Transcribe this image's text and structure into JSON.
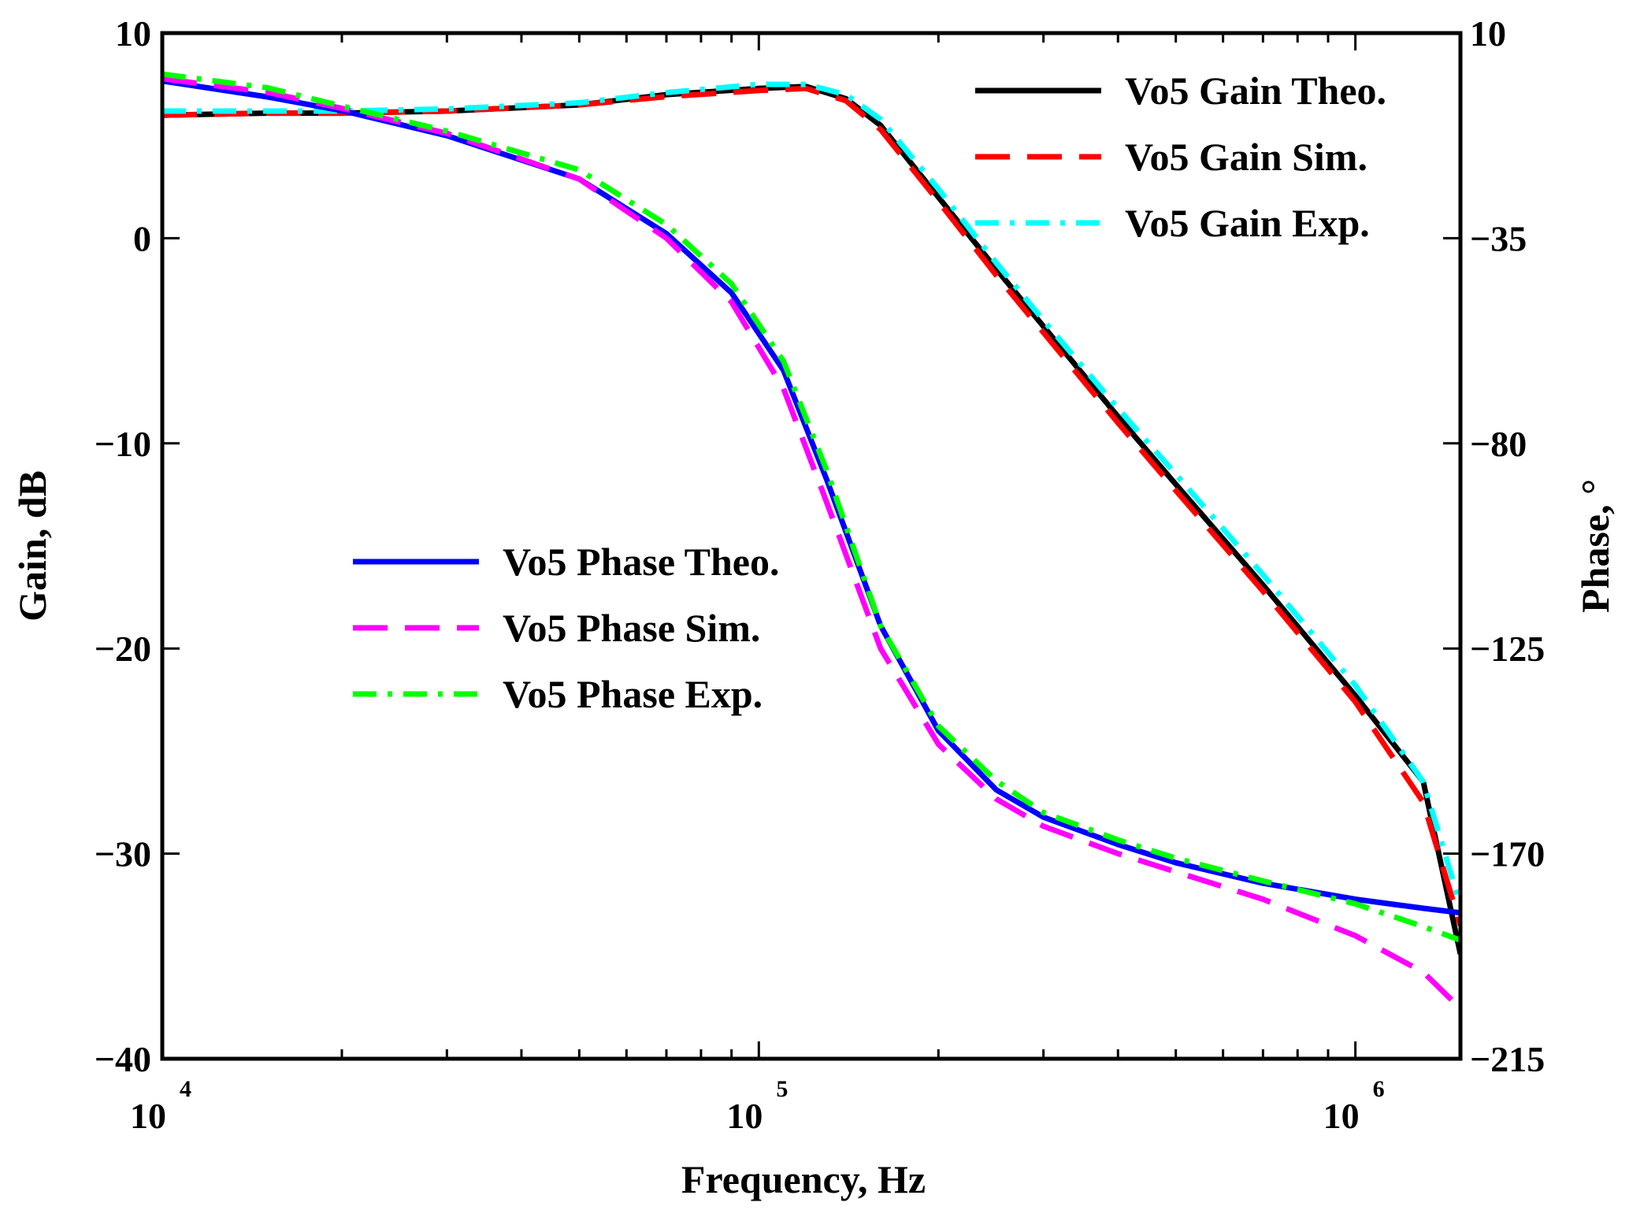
{
  "chart_data": {
    "type": "line",
    "title": "",
    "xlabel": "Frequency, Hz",
    "ylabel_left": "Gain, dB",
    "ylabel_right": "Phase, °",
    "xscale": "log",
    "xlim": [
      10000,
      1500000
    ],
    "ylim_left": [
      -40,
      10
    ],
    "ylim_right": [
      -215,
      10
    ],
    "grid": false,
    "x_ticks": [
      {
        "value": 10000,
        "base": "10",
        "exp": "4"
      },
      {
        "value": 100000,
        "base": "10",
        "exp": "5"
      },
      {
        "value": 1000000,
        "base": "10",
        "exp": "6"
      }
    ],
    "y_ticks_left": [
      {
        "value": 10,
        "label": "10"
      },
      {
        "value": 0,
        "label": "0"
      },
      {
        "value": -10,
        "label": "−10"
      },
      {
        "value": -20,
        "label": "−20"
      },
      {
        "value": -30,
        "label": "−30"
      },
      {
        "value": -40,
        "label": "−40"
      }
    ],
    "y_ticks_right": [
      {
        "value": 10,
        "label": "10"
      },
      {
        "value": -35,
        "label": "−35"
      },
      {
        "value": -80,
        "label": "−80"
      },
      {
        "value": -125,
        "label": "−125"
      },
      {
        "value": -170,
        "label": "−170"
      },
      {
        "value": -215,
        "label": "−215"
      }
    ],
    "legend_gain_position": "top-right",
    "legend_phase_position": "center-left",
    "series": [
      {
        "name": "Vo5 Gain Theo.",
        "axis": "left",
        "color": "#000000",
        "dash": "solid",
        "x": [
          10000,
          15000,
          20000,
          30000,
          50000,
          70000,
          100000,
          120000,
          140000,
          160000,
          200000,
          250000,
          300000,
          400000,
          500000,
          700000,
          1000000,
          1300000,
          1500000
        ],
        "y": [
          6.0,
          6.1,
          6.1,
          6.2,
          6.5,
          7.0,
          7.3,
          7.4,
          6.8,
          5.5,
          2.0,
          -1.5,
          -4.3,
          -8.7,
          -12.0,
          -16.9,
          -22.3,
          -26.5,
          -34.9
        ]
      },
      {
        "name": "Vo5 Gain Sim.",
        "axis": "left",
        "color": "#ff0000",
        "dash": "long-dash",
        "x": [
          10000,
          15000,
          20000,
          30000,
          50000,
          70000,
          100000,
          120000,
          140000,
          160000,
          200000,
          250000,
          300000,
          400000,
          500000,
          700000,
          1000000,
          1300000,
          1500000
        ],
        "y": [
          6.0,
          6.1,
          6.1,
          6.2,
          6.5,
          6.9,
          7.2,
          7.3,
          6.7,
          5.3,
          1.8,
          -1.8,
          -4.6,
          -9.0,
          -12.3,
          -17.2,
          -22.6,
          -27.5,
          -33.5
        ]
      },
      {
        "name": "Vo5 Gain Exp.",
        "axis": "left",
        "color": "#00ffff",
        "dash": "dash-dot",
        "x": [
          10000,
          15000,
          20000,
          30000,
          50000,
          70000,
          100000,
          120000,
          140000,
          160000,
          200000,
          250000,
          300000,
          400000,
          500000,
          700000,
          1000000,
          1300000,
          1500000
        ],
        "y": [
          6.2,
          6.2,
          6.2,
          6.3,
          6.6,
          7.1,
          7.5,
          7.5,
          7.0,
          5.8,
          2.4,
          -1.2,
          -4.0,
          -8.3,
          -11.5,
          -16.4,
          -21.8,
          -26.5,
          -32.5
        ]
      },
      {
        "name": "Vo5 Phase Theo.",
        "axis": "right",
        "color": "#0000ff",
        "dash": "solid",
        "x": [
          10000,
          15000,
          20000,
          30000,
          50000,
          70000,
          90000,
          110000,
          130000,
          160000,
          200000,
          250000,
          300000,
          400000,
          500000,
          700000,
          1000000,
          1300000,
          1500000
        ],
        "y": [
          -0.5,
          -4.0,
          -7.0,
          -12.5,
          -22.0,
          -34.0,
          -47.0,
          -64.0,
          -88.0,
          -120.0,
          -143.0,
          -156.0,
          -162.0,
          -168.0,
          -172.0,
          -176.5,
          -180.0,
          -182.0,
          -183.0
        ]
      },
      {
        "name": "Vo5 Phase Sim.",
        "axis": "right",
        "color": "#ff00ff",
        "dash": "long-dash",
        "x": [
          10000,
          15000,
          20000,
          30000,
          50000,
          70000,
          90000,
          110000,
          130000,
          160000,
          200000,
          250000,
          300000,
          400000,
          500000,
          700000,
          1000000,
          1300000,
          1500000
        ],
        "y": [
          0.0,
          -3.0,
          -6.5,
          -12.0,
          -22.0,
          -35.0,
          -49.0,
          -68.0,
          -93.0,
          -125.0,
          -146.0,
          -158.0,
          -164.0,
          -170.0,
          -174.0,
          -180.0,
          -188.0,
          -196.0,
          -204.0
        ]
      },
      {
        "name": "Vo5 Phase Exp.",
        "axis": "right",
        "color": "#00ff00",
        "dash": "dash-dot",
        "x": [
          10000,
          15000,
          20000,
          30000,
          50000,
          70000,
          90000,
          110000,
          130000,
          160000,
          200000,
          250000,
          300000,
          400000,
          500000,
          700000,
          1000000,
          1300000,
          1500000
        ],
        "y": [
          1.0,
          -2.0,
          -6.0,
          -11.5,
          -20.0,
          -32.0,
          -45.0,
          -62.0,
          -86.0,
          -120.0,
          -142.0,
          -154.0,
          -161.0,
          -167.0,
          -171.0,
          -176.0,
          -181.0,
          -186.0,
          -189.0
        ]
      }
    ]
  }
}
